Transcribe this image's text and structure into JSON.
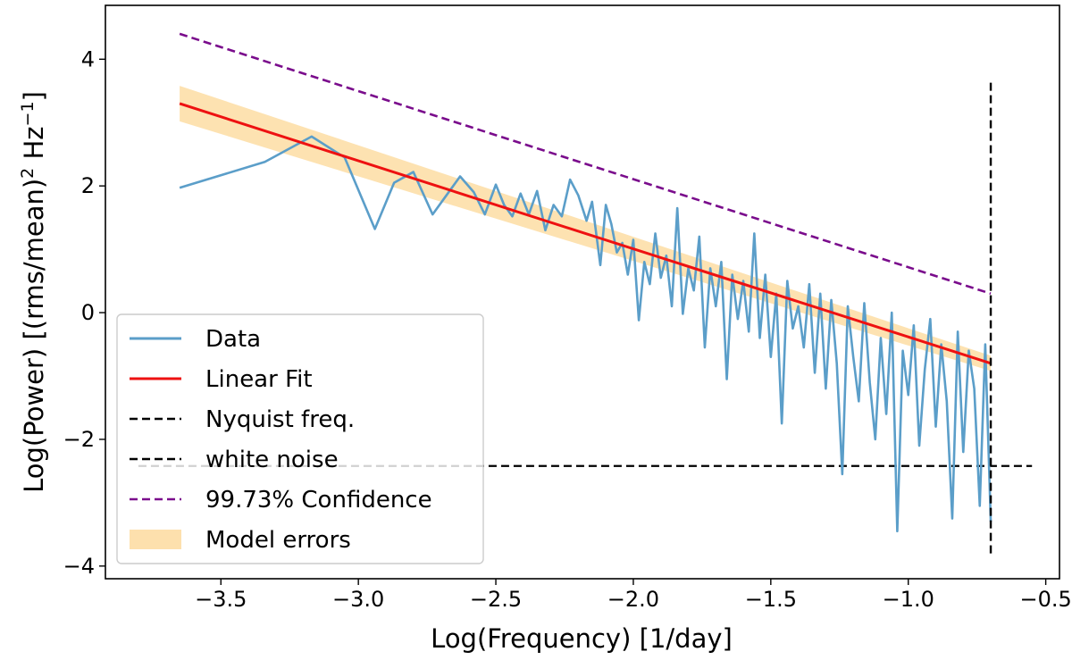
{
  "chart_data": {
    "type": "line",
    "xlabel": "Log(Frequency) [1/day]",
    "ylabel_main": "Log(Power) [(rms/mean)",
    "ylabel_sup1": "2",
    "ylabel_mid": " Hz",
    "ylabel_sup2": "−1",
    "ylabel_end": "]",
    "xlim": [
      -3.92,
      -0.45
    ],
    "ylim": [
      -4.2,
      4.85
    ],
    "xticks": [
      -3.5,
      -3.0,
      -2.5,
      -2.0,
      -1.5,
      -1.0,
      -0.5
    ],
    "xtick_labels": [
      "−3.5",
      "−3.0",
      "−2.5",
      "−2.0",
      "−1.5",
      "−1.0",
      "−0.5"
    ],
    "yticks": [
      -4,
      -2,
      0,
      2,
      4
    ],
    "ytick_labels": [
      "−4",
      "−2",
      "0",
      "2",
      "4"
    ],
    "grid": false,
    "legend_position": "lower-left",
    "colors": {
      "data": "#5b9ec9",
      "fit": "#ee1111",
      "nyquist": "#000000",
      "white_noise": "#000000",
      "confidence": "#7a0c8c",
      "model_errors": "#fde0ad"
    },
    "legend": [
      {
        "label": "Data",
        "style": "solid",
        "color": "#5b9ec9"
      },
      {
        "label": "Linear Fit",
        "style": "solid",
        "color": "#ee1111"
      },
      {
        "label": "Nyquist freq.",
        "style": "dashed",
        "color": "#000000"
      },
      {
        "label": "white noise",
        "style": "dashed",
        "color": "#000000"
      },
      {
        "label": "99.73% Confidence",
        "style": "dashed",
        "color": "#7a0c8c"
      },
      {
        "label": "Model errors",
        "style": "patch",
        "color": "#fde0ad"
      }
    ],
    "linear_fit": {
      "x": [
        -3.65,
        -0.7
      ],
      "y": [
        3.3,
        -0.8
      ]
    },
    "model_errors": {
      "x": [
        -3.65,
        -0.7
      ],
      "upper": [
        3.58,
        -0.68
      ],
      "lower": [
        3.02,
        -0.92
      ]
    },
    "confidence": {
      "x": [
        -3.65,
        -0.7
      ],
      "y": [
        4.4,
        0.3
      ]
    },
    "nyquist": {
      "x": -0.7,
      "y": [
        -3.8,
        3.65
      ]
    },
    "white_noise": {
      "y": -2.42,
      "x": [
        -3.8,
        -0.55
      ]
    },
    "data_series": {
      "x": [
        -3.65,
        -3.34,
        -3.17,
        -3.05,
        -2.94,
        -2.87,
        -2.8,
        -2.73,
        -2.68,
        -2.63,
        -2.58,
        -2.54,
        -2.5,
        -2.47,
        -2.44,
        -2.41,
        -2.38,
        -2.35,
        -2.32,
        -2.29,
        -2.26,
        -2.23,
        -2.2,
        -2.17,
        -2.15,
        -2.12,
        -2.1,
        -2.08,
        -2.06,
        -2.04,
        -2.02,
        -2.0,
        -1.98,
        -1.96,
        -1.94,
        -1.92,
        -1.9,
        -1.88,
        -1.86,
        -1.84,
        -1.82,
        -1.8,
        -1.78,
        -1.76,
        -1.74,
        -1.72,
        -1.7,
        -1.68,
        -1.66,
        -1.64,
        -1.62,
        -1.6,
        -1.58,
        -1.56,
        -1.54,
        -1.52,
        -1.5,
        -1.48,
        -1.46,
        -1.44,
        -1.42,
        -1.4,
        -1.38,
        -1.36,
        -1.34,
        -1.32,
        -1.3,
        -1.28,
        -1.26,
        -1.24,
        -1.22,
        -1.2,
        -1.18,
        -1.16,
        -1.14,
        -1.12,
        -1.1,
        -1.08,
        -1.06,
        -1.04,
        -1.02,
        -1.0,
        -0.98,
        -0.96,
        -0.94,
        -0.92,
        -0.9,
        -0.88,
        -0.86,
        -0.84,
        -0.82,
        -0.8,
        -0.78,
        -0.76,
        -0.74,
        -0.72,
        -0.7
      ],
      "y": [
        1.97,
        2.38,
        2.78,
        2.45,
        1.32,
        2.05,
        2.22,
        1.55,
        1.85,
        2.15,
        1.9,
        1.55,
        2.02,
        1.7,
        1.52,
        1.88,
        1.55,
        1.92,
        1.3,
        1.7,
        1.52,
        2.1,
        1.85,
        1.45,
        1.75,
        0.75,
        1.7,
        1.4,
        0.95,
        1.1,
        0.6,
        1.15,
        -0.12,
        0.8,
        0.45,
        1.25,
        0.55,
        0.9,
        0.1,
        1.65,
        -0.02,
        0.7,
        0.35,
        1.2,
        -0.55,
        0.7,
        0.1,
        0.8,
        -1.05,
        0.6,
        -0.1,
        0.5,
        -0.3,
        1.25,
        -0.4,
        0.6,
        -0.7,
        0.3,
        -1.75,
        0.5,
        -0.25,
        0.1,
        -0.55,
        0.45,
        -0.95,
        0.3,
        -1.2,
        0.2,
        -0.8,
        -2.55,
        0.1,
        -0.7,
        -1.4,
        0.15,
        -1.1,
        -2.0,
        -0.4,
        -1.6,
        0.0,
        -3.45,
        -0.6,
        -1.3,
        -0.2,
        -2.1,
        -0.9,
        -0.1,
        -1.8,
        -0.5,
        -1.4,
        -3.25,
        -0.3,
        -2.2,
        -0.6,
        -1.2,
        -3.05,
        -0.5,
        -3.3
      ]
    }
  }
}
